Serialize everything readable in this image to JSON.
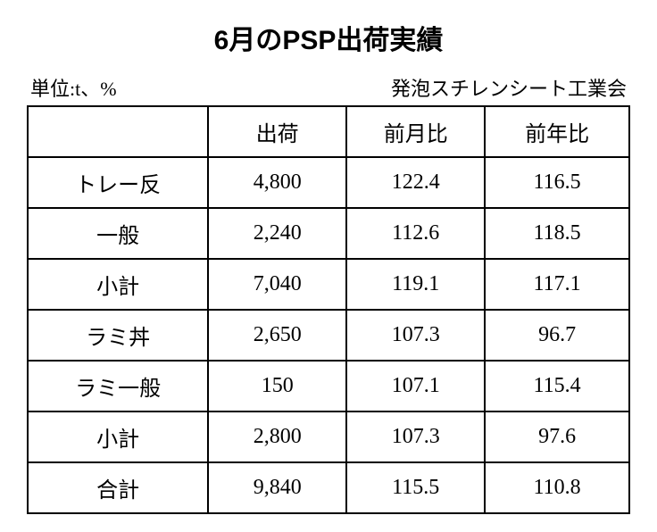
{
  "title": "6月のPSP出荷実績",
  "unit_label": "単位:t、%",
  "source_label": "発泡スチレンシート工業会",
  "table": {
    "columns": [
      "",
      "出荷",
      "前月比",
      "前年比"
    ],
    "rows": [
      [
        "トレー反",
        "4,800",
        "122.4",
        "116.5"
      ],
      [
        "一般",
        "2,240",
        "112.6",
        "118.5"
      ],
      [
        "小計",
        "7,040",
        "119.1",
        "117.1"
      ],
      [
        "ラミ丼",
        "2,650",
        "107.3",
        "96.7"
      ],
      [
        "ラミ一般",
        "150",
        "107.1",
        "115.4"
      ],
      [
        "小計",
        "2,800",
        "107.3",
        "97.6"
      ],
      [
        "合計",
        "9,840",
        "115.5",
        "110.8"
      ]
    ]
  }
}
